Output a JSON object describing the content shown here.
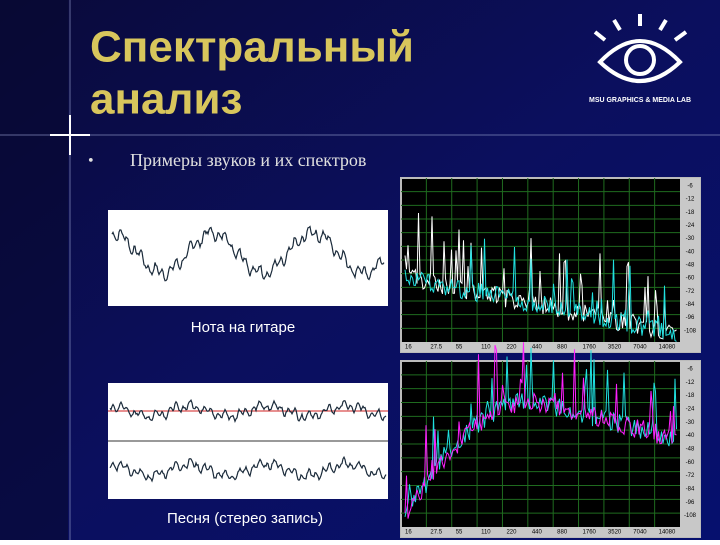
{
  "header": {
    "title_lines": [
      "Спектральный",
      "анализ"
    ],
    "logo_text": "MSU GRAPHICS & MEDIA LAB"
  },
  "bullets": [
    {
      "marker": "•",
      "text": "Примеры звуков и их спектров"
    }
  ],
  "examples": [
    {
      "caption": "Нота на гитаре"
    },
    {
      "caption": "Песня (стерео запись)"
    }
  ],
  "spectrum_axis": {
    "freq_labels": [
      "16",
      "27.5",
      "55",
      "110",
      "220",
      "440",
      "880",
      "1760",
      "3520",
      "7040",
      "14080"
    ],
    "db_labels": [
      "-6",
      "-12",
      "-18",
      "-24",
      "-30",
      "-40",
      "-48",
      "-60",
      "-72",
      "-84",
      "-96",
      "-108"
    ]
  }
}
